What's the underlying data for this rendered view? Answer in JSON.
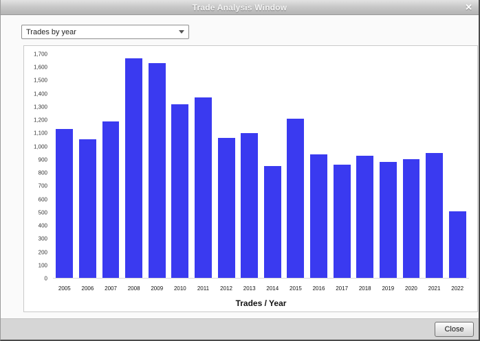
{
  "window": {
    "title": "Trade Analysis Window",
    "close_icon": "✕"
  },
  "toolbar": {
    "dropdown_value": "Trades by year"
  },
  "chart_data": {
    "type": "bar",
    "title": "",
    "xlabel": "Trades / Year",
    "ylabel": "",
    "categories": [
      "2005",
      "2006",
      "2007",
      "2008",
      "2009",
      "2010",
      "2011",
      "2012",
      "2013",
      "2014",
      "2015",
      "2016",
      "2017",
      "2018",
      "2019",
      "2020",
      "2021",
      "2022"
    ],
    "values": [
      1130,
      1055,
      1190,
      1670,
      1630,
      1320,
      1370,
      1065,
      1100,
      850,
      1210,
      940,
      860,
      930,
      880,
      900,
      950,
      505
    ],
    "ylim": [
      0,
      1700
    ],
    "ytick_step": 100,
    "bar_color": "#3a3af0",
    "grid": false,
    "legend": false
  },
  "footer": {
    "close_label": "Close"
  }
}
